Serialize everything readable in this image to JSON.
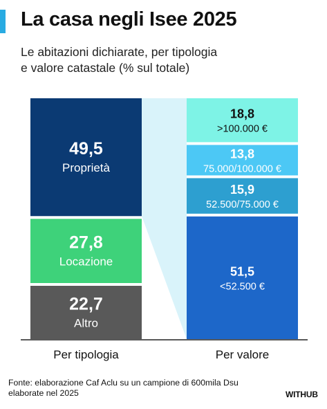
{
  "header": {
    "title": "La casa negli Isee 2025",
    "subtitle_line1": "Le abitazioni dichiarate, per tipologia",
    "subtitle_line2": "e valore catastale (% sul totale)"
  },
  "colors": {
    "accent": "#29abe2",
    "connector": "#d9f3fa",
    "proprieta": "#0b3a73",
    "locazione": "#3ed27a",
    "altro": "#595959",
    "v_100k": "#7ef3e6",
    "v_75_100": "#4cc8f5",
    "v_52_75": "#2d9fd0",
    "v_52": "#1d67c9"
  },
  "chart_data": {
    "type": "bar",
    "stacked": true,
    "unit": "% sul totale",
    "ylim": [
      0,
      100
    ],
    "categories": [
      "Per tipologia",
      "Per valore"
    ],
    "series": [
      {
        "category": "Per tipologia",
        "segments": [
          {
            "value": 22.7,
            "value_label": "22,7",
            "name": "Altro",
            "color": "#595959",
            "text_color": "#ffffff"
          },
          {
            "value": 27.8,
            "value_label": "27,8",
            "name": "Locazione",
            "color": "#3ed27a",
            "text_color": "#ffffff"
          },
          {
            "value": 49.5,
            "value_label": "49,5",
            "name": "Proprietà",
            "color": "#0b3a73",
            "text_color": "#ffffff"
          }
        ]
      },
      {
        "category": "Per valore",
        "segments": [
          {
            "value": 51.5,
            "value_label": "51,5",
            "name": "<52.500 €",
            "color": "#1d67c9",
            "text_color": "#ffffff"
          },
          {
            "value": 15.9,
            "value_label": "15,9",
            "name": "52.500/75.000 €",
            "color": "#2d9fd0",
            "text_color": "#ffffff"
          },
          {
            "value": 13.8,
            "value_label": "13,8",
            "name": "75.000/100.000 €",
            "color": "#4cc8f5",
            "text_color": "#ffffff"
          },
          {
            "value": 18.8,
            "value_label": "18,8",
            "name": ">100.000 €",
            "color": "#7ef3e6",
            "text_color": "#111111"
          }
        ]
      }
    ]
  },
  "footer": {
    "source_line1": "Fonte:  elaborazione Caf Aclu su un campione di 600mila Dsu",
    "source_line2": "elaborate nel 2025",
    "logo": "WITHUB"
  }
}
